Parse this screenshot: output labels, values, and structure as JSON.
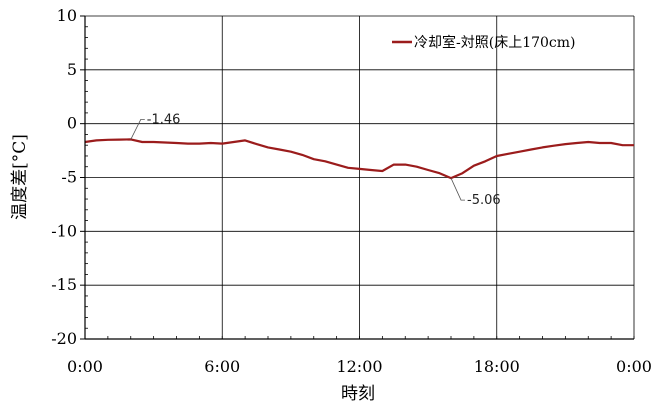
{
  "chart_data": {
    "type": "line",
    "title": "",
    "xlabel": "時刻",
    "ylabel": "温度差[°C]",
    "xlim": [
      0,
      24
    ],
    "ylim": [
      -20,
      10
    ],
    "x_ticks": [
      0,
      6,
      12,
      18,
      24
    ],
    "x_tick_labels": [
      "0:00",
      "6:00",
      "12:00",
      "18:00",
      "0:00"
    ],
    "y_ticks": [
      10,
      5,
      0,
      -5,
      -10,
      -15,
      -20
    ],
    "y_tick_labels": [
      "10",
      "5",
      "0",
      "-5",
      "-10",
      "-15",
      "-20"
    ],
    "grid": true,
    "legend_position": "top-right",
    "series_color": "#9b1c1c",
    "series": [
      {
        "name": "冷却室-対照(床上170cm)",
        "x": [
          0,
          0.5,
          1,
          1.5,
          2,
          2.5,
          3,
          3.5,
          4,
          4.5,
          5,
          5.5,
          6,
          6.5,
          7,
          7.5,
          8,
          8.5,
          9,
          9.5,
          10,
          10.5,
          11,
          11.5,
          12,
          12.5,
          13,
          13.5,
          14,
          14.5,
          15,
          15.5,
          16,
          16.5,
          17,
          17.5,
          18,
          18.5,
          19,
          19.5,
          20,
          20.5,
          21,
          21.5,
          22,
          22.5,
          23,
          23.5,
          24
        ],
        "y": [
          -1.7,
          -1.55,
          -1.5,
          -1.48,
          -1.46,
          -1.7,
          -1.7,
          -1.75,
          -1.8,
          -1.85,
          -1.85,
          -1.8,
          -1.85,
          -1.7,
          -1.55,
          -1.9,
          -2.2,
          -2.4,
          -2.6,
          -2.9,
          -3.3,
          -3.5,
          -3.8,
          -4.1,
          -4.2,
          -4.3,
          -4.4,
          -3.8,
          -3.8,
          -4.0,
          -4.3,
          -4.6,
          -5.06,
          -4.6,
          -3.9,
          -3.5,
          -3.0,
          -2.8,
          -2.6,
          -2.4,
          -2.2,
          -2.05,
          -1.9,
          -1.8,
          -1.7,
          -1.8,
          -1.8,
          -2.0,
          -2.0
        ]
      }
    ],
    "annotations": [
      {
        "text": "-1.46",
        "x": 2,
        "y": -1.46
      },
      {
        "text": "-5.06",
        "x": 16,
        "y": -5.06
      }
    ]
  }
}
